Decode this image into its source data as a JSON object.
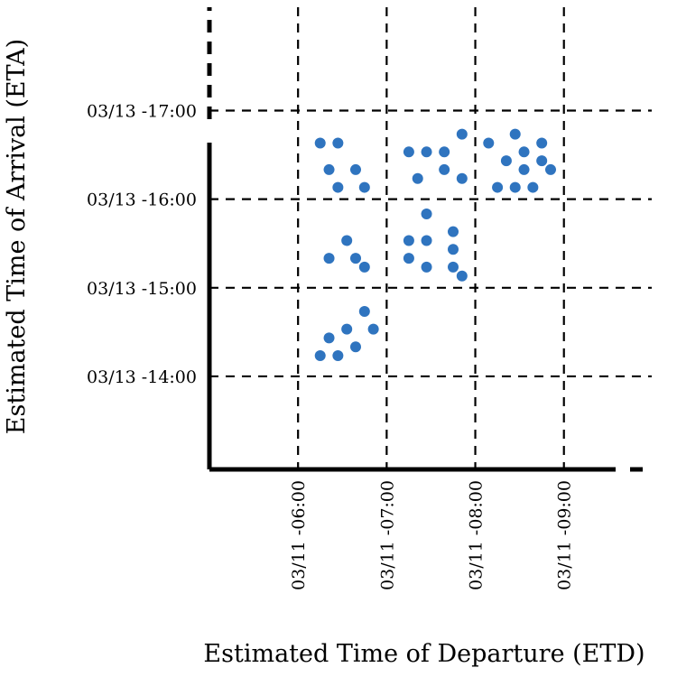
{
  "chart_data": {
    "type": "scatter",
    "xlabel": "Estimated Time of Departure (ETD)",
    "ylabel": "Estimated Time of Arrival (ETA)",
    "x_ticks": [
      "03/11 -06:00",
      "03/11 -07:00",
      "03/11 -08:00",
      "03/11 -09:00"
    ],
    "y_ticks": [
      "03/13 -14:00",
      "03/13 -15:00",
      "03/13 -16:00",
      "03/13 -17:00"
    ],
    "x_unit": "date-hour",
    "y_unit": "date-hour",
    "xlim": [
      "03/11 -05:00",
      "03/11 -09:35"
    ],
    "ylim": [
      "03/13 -12:57",
      "03/13 -18:10"
    ],
    "grid": true,
    "legend": "none",
    "point_color": "#2f74bf",
    "points": [
      [
        "03/11 -06:15",
        "03/13 -16:38"
      ],
      [
        "03/11 -06:27",
        "03/13 -16:38"
      ],
      [
        "03/11 -06:21",
        "03/13 -16:20"
      ],
      [
        "03/11 -06:39",
        "03/13 -16:20"
      ],
      [
        "03/11 -06:27",
        "03/13 -16:08"
      ],
      [
        "03/11 -06:45",
        "03/13 -16:08"
      ],
      [
        "03/11 -06:33",
        "03/13 -15:32"
      ],
      [
        "03/11 -06:21",
        "03/13 -15:20"
      ],
      [
        "03/11 -06:39",
        "03/13 -15:20"
      ],
      [
        "03/11 -06:45",
        "03/13 -15:14"
      ],
      [
        "03/11 -06:45",
        "03/13 -14:44"
      ],
      [
        "03/11 -06:33",
        "03/13 -14:32"
      ],
      [
        "03/11 -06:51",
        "03/13 -14:32"
      ],
      [
        "03/11 -06:21",
        "03/13 -14:26"
      ],
      [
        "03/11 -06:39",
        "03/13 -14:20"
      ],
      [
        "03/11 -06:15",
        "03/13 -14:14"
      ],
      [
        "03/11 -06:27",
        "03/13 -14:14"
      ],
      [
        "03/11 -07:15",
        "03/13 -16:32"
      ],
      [
        "03/11 -07:27",
        "03/13 -16:32"
      ],
      [
        "03/11 -07:39",
        "03/13 -16:32"
      ],
      [
        "03/11 -07:51",
        "03/13 -16:44"
      ],
      [
        "03/11 -07:39",
        "03/13 -16:20"
      ],
      [
        "03/11 -07:21",
        "03/13 -16:14"
      ],
      [
        "03/11 -07:51",
        "03/13 -16:14"
      ],
      [
        "03/11 -07:27",
        "03/13 -15:50"
      ],
      [
        "03/11 -07:45",
        "03/13 -15:38"
      ],
      [
        "03/11 -07:15",
        "03/13 -15:32"
      ],
      [
        "03/11 -07:27",
        "03/13 -15:32"
      ],
      [
        "03/11 -07:45",
        "03/13 -15:26"
      ],
      [
        "03/11 -07:15",
        "03/13 -15:20"
      ],
      [
        "03/11 -07:45",
        "03/13 -15:14"
      ],
      [
        "03/11 -07:27",
        "03/13 -15:14"
      ],
      [
        "03/11 -07:51",
        "03/13 -15:08"
      ],
      [
        "03/11 -08:09",
        "03/13 -16:38"
      ],
      [
        "03/11 -08:27",
        "03/13 -16:44"
      ],
      [
        "03/11 -08:45",
        "03/13 -16:38"
      ],
      [
        "03/11 -08:33",
        "03/13 -16:32"
      ],
      [
        "03/11 -08:21",
        "03/13 -16:26"
      ],
      [
        "03/11 -08:45",
        "03/13 -16:26"
      ],
      [
        "03/11 -08:33",
        "03/13 -16:20"
      ],
      [
        "03/11 -08:51",
        "03/13 -16:20"
      ],
      [
        "03/11 -08:15",
        "03/13 -16:08"
      ],
      [
        "03/11 -08:27",
        "03/13 -16:08"
      ],
      [
        "03/11 -08:39",
        "03/13 -16:08"
      ]
    ]
  }
}
